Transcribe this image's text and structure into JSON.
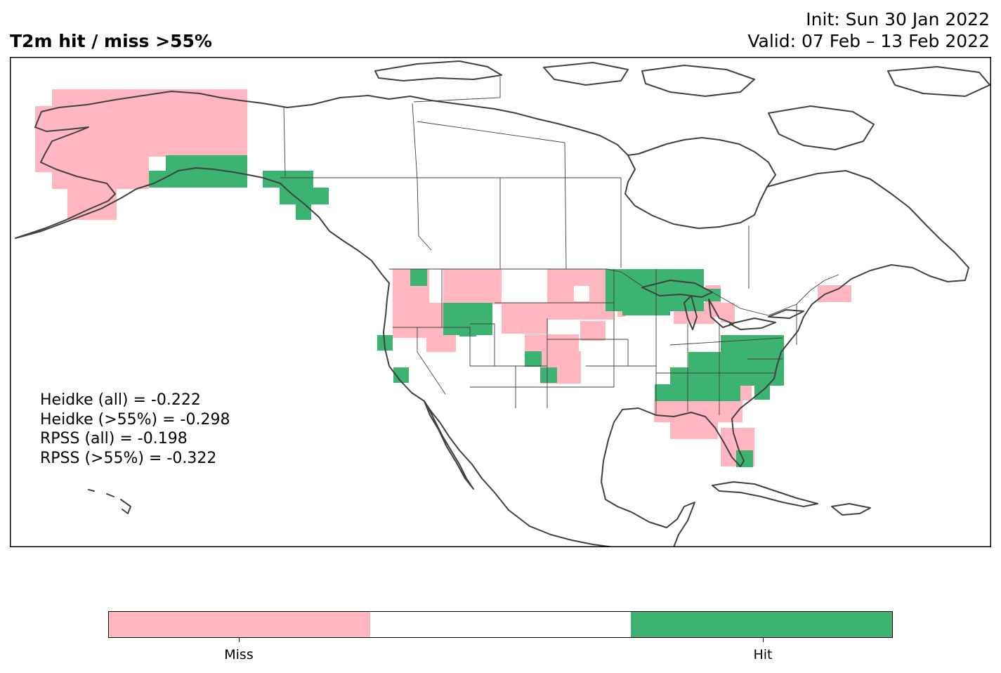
{
  "header": {
    "title": "T2m hit / miss  >55%",
    "init": "Init: Sun 30 Jan 2022",
    "valid": "Valid: 07 Feb – 13 Feb 2022"
  },
  "stats": [
    "Heidke (all) = -0.222",
    "Heidke (>55%) = -0.298",
    "RPSS (all) = -0.198",
    "RPSS (>55%) = -0.322"
  ],
  "colors": {
    "miss": "#ffb6c1",
    "neutral": "#ffffff",
    "hit": "#3cb371",
    "coast": "#404040"
  },
  "colorbar": {
    "labels": [
      "Miss",
      "Hit"
    ]
  }
}
